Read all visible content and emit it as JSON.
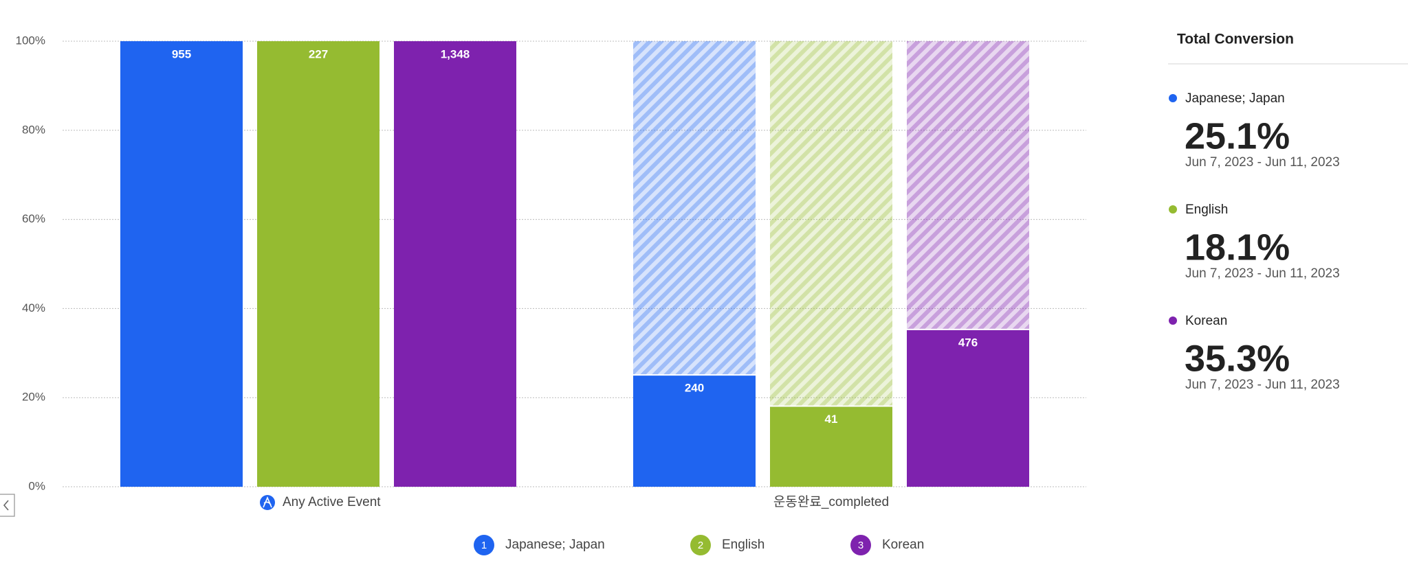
{
  "chart_data": {
    "type": "funnel",
    "categories": [
      "Any Active Event",
      "운동완료_completed"
    ],
    "ylim": [
      0,
      100
    ],
    "yticks": [
      {
        "value": 0,
        "label": "0%"
      },
      {
        "value": 20,
        "label": "20%"
      },
      {
        "value": 40,
        "label": "40%"
      },
      {
        "value": 60,
        "label": "60%"
      },
      {
        "value": 80,
        "label": "80%"
      },
      {
        "value": 100,
        "label": "100%"
      }
    ],
    "grid": true,
    "series": [
      {
        "name": "Japanese; Japan",
        "index_label": "1",
        "color": "#1f64f0",
        "values": [
          100,
          25.1
        ],
        "counts": [
          955,
          240
        ],
        "conversion_label": "25.1%",
        "date_range": "Jun 7, 2023 - Jun 11, 2023"
      },
      {
        "name": "English",
        "index_label": "2",
        "color": "#95bb31",
        "values": [
          100,
          18.1
        ],
        "counts": [
          227,
          41
        ],
        "conversion_label": "18.1%",
        "date_range": "Jun 7, 2023 - Jun 11, 2023"
      },
      {
        "name": "Korean",
        "index_label": "3",
        "color": "#7e22ae",
        "values": [
          100,
          35.3
        ],
        "counts": [
          {
            "value": 1348,
            "label": "1,348"
          },
          476
        ],
        "conversion_label": "35.3%",
        "date_range": "Jun 7, 2023 - Jun 11, 2023"
      }
    ],
    "summary_title": "Total Conversion"
  }
}
